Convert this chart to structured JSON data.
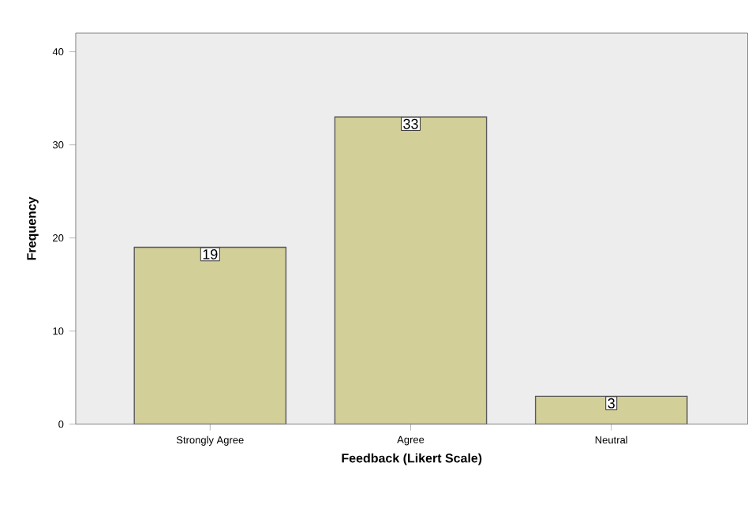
{
  "chart_data": {
    "type": "bar",
    "xlabel": "Feedback (Likert Scale)",
    "ylabel": "Frequency",
    "categories": [
      "Strongly Agree",
      "Agree",
      "Neutral"
    ],
    "values": [
      19,
      33,
      3
    ],
    "color": "#d3cf98",
    "ylim": [
      0,
      42
    ],
    "yticks": [
      0,
      10,
      20,
      30,
      40
    ],
    "data_labels": true
  }
}
